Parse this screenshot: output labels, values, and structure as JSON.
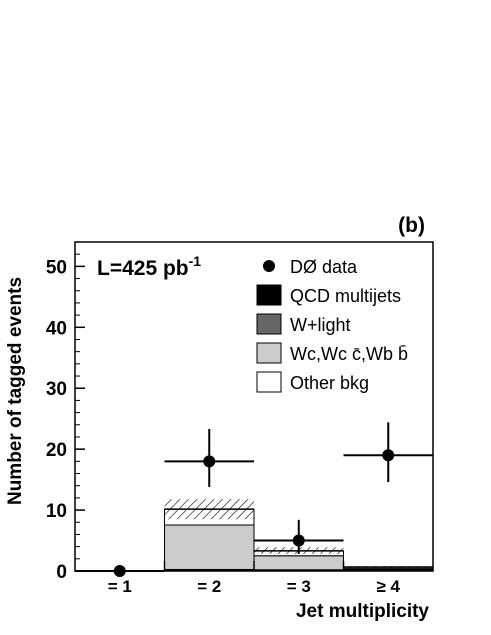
{
  "chart_data": {
    "type": "bar",
    "panel_label": "(b)",
    "luminosity": {
      "main": "L=425 pb",
      "sup": "-1"
    },
    "xlabel": "Jet multiplicity",
    "ylabel": "Number of tagged events",
    "categories": [
      "= 1",
      "= 2",
      "= 3",
      "≥ 4"
    ],
    "ylim": [
      0,
      54
    ],
    "yticks": [
      0,
      10,
      20,
      30,
      40,
      50
    ],
    "series": [
      {
        "name": "QCD multijets",
        "color": "#000000",
        "values": [
          0,
          0.1,
          0.1,
          0.2
        ]
      },
      {
        "name": "W+light",
        "color": "#666666",
        "values": [
          0,
          0.15,
          0.1,
          0.05
        ]
      },
      {
        "name": "Wc,Wc c̄,Wb b̄",
        "color": "#cccccc",
        "values": [
          0,
          7.3,
          2.3,
          0.2
        ]
      },
      {
        "name": "Other bkg",
        "color": "#ffffff",
        "values": [
          0,
          2.6,
          0.8,
          0.2
        ]
      }
    ],
    "uncertainty": [
      {
        "low": 0,
        "high": 0
      },
      {
        "low": 8.5,
        "high": 11.8
      },
      {
        "low": 2.8,
        "high": 3.9
      },
      {
        "low": 0.5,
        "high": 0.8
      }
    ],
    "data_points": {
      "name": "DØ data",
      "values": [
        0,
        18,
        5,
        19
      ],
      "err_low": [
        0,
        4.2,
        2.2,
        4.4
      ],
      "err_high": [
        0,
        5.3,
        3.4,
        5.4
      ]
    },
    "legend": [
      {
        "label": "DØ data",
        "kind": "marker"
      },
      {
        "label": "QCD multijets",
        "kind": "box",
        "color": "#000000"
      },
      {
        "label": "W+light",
        "kind": "box",
        "color": "#666666"
      },
      {
        "label": "Wc,Wc c̄,Wb b̄",
        "kind": "box",
        "color": "#cccccc"
      },
      {
        "label": "Other bkg",
        "kind": "box",
        "color": "#ffffff"
      }
    ],
    "legend_position": "top-right",
    "grid": false
  }
}
